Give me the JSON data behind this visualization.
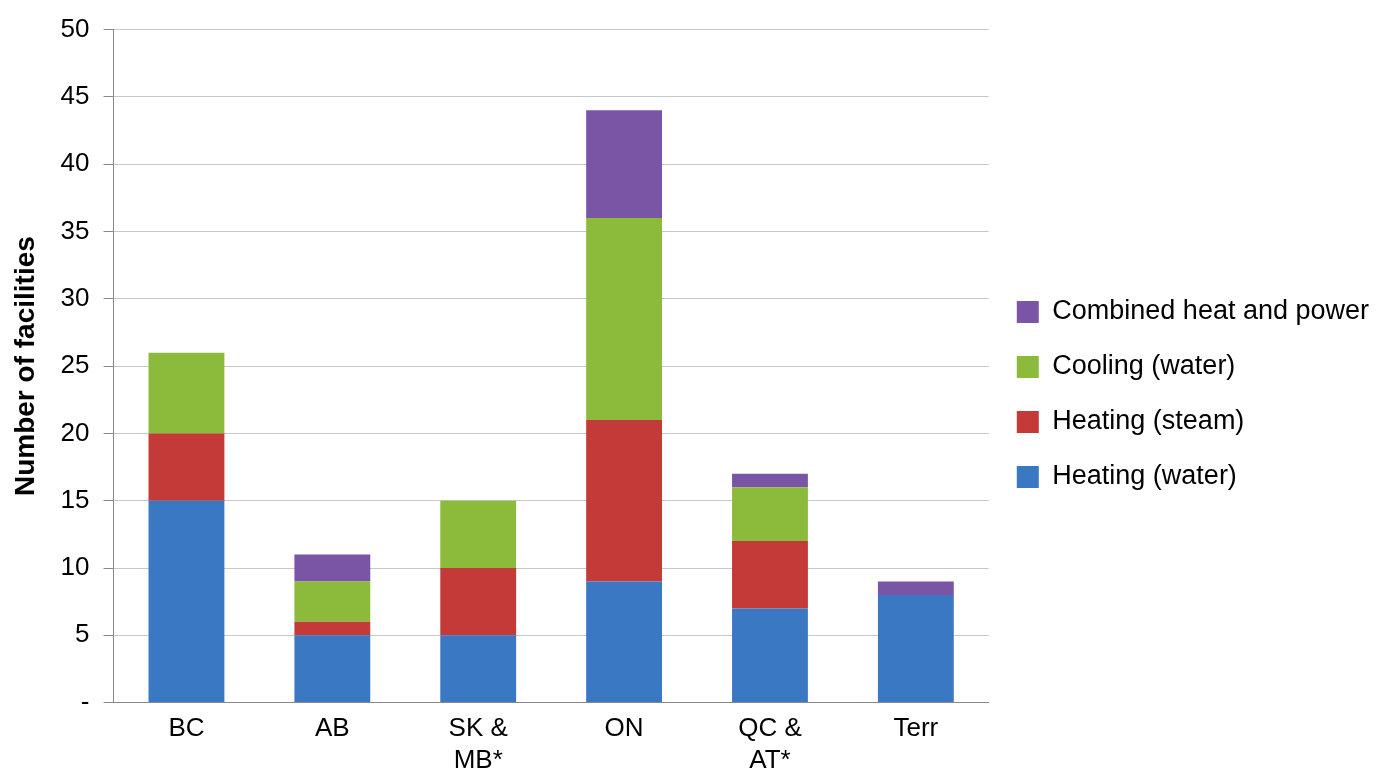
{
  "chart_data": {
    "type": "bar",
    "stacked": true,
    "ylabel": "Number of facilities",
    "categories": [
      "BC",
      "AB",
      "SK & MB*",
      "ON",
      "QC & AT*",
      "Terr"
    ],
    "series": [
      {
        "name": "Heating (water)",
        "color": "#3b78c4",
        "values": [
          15,
          5,
          5,
          9,
          7,
          8
        ]
      },
      {
        "name": "Heating (steam)",
        "color": "#c43a38",
        "values": [
          5,
          1,
          5,
          12,
          5,
          0
        ]
      },
      {
        "name": "Cooling (water)",
        "color": "#8cbb3c",
        "values": [
          6,
          3,
          5,
          15,
          4,
          0
        ]
      },
      {
        "name": "Combined heat and power",
        "color": "#7a55a6",
        "values": [
          0,
          2,
          0,
          8,
          1,
          1
        ]
      }
    ],
    "ylim": [
      0,
      50
    ],
    "yticks": [
      {
        "value": 0,
        "label": "-"
      },
      5,
      10,
      15,
      20,
      25,
      30,
      35,
      40,
      45,
      50
    ],
    "grid": "y",
    "legend": "right"
  }
}
